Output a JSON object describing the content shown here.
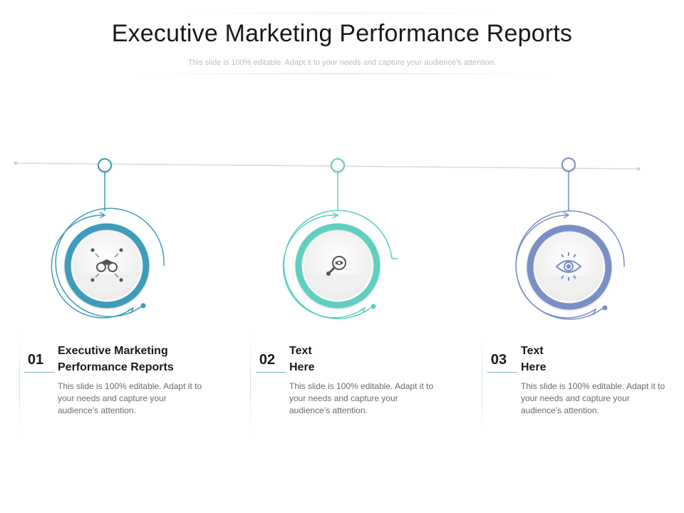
{
  "title": "Executive Marketing Performance Reports",
  "subtitle": "This slide is 100% editable. Adapt it to your needs and capture your audience’s attention.",
  "colors": {
    "blue": "#3d9cb9",
    "teal": "#5fcfc0",
    "purple": "#7b8fc4",
    "track": "#d9d9d9"
  },
  "items": [
    {
      "number": "01",
      "heading": "Executive Marketing\nPerformance Reports",
      "body": "This slide is 100% editable. Adapt it to your needs and capture your audience’s attention.",
      "icon": "binoculars-icon",
      "color": "#3d9cb9"
    },
    {
      "number": "02",
      "heading": "Text\nHere",
      "body": "This slide is 100% editable. Adapt it to your needs and capture your audience’s attention.",
      "icon": "eye-search-icon",
      "color": "#5fcfc0"
    },
    {
      "number": "03",
      "heading": "Text\nHere",
      "body": "This slide is 100% editable. Adapt it to your needs and capture your audience’s attention.",
      "icon": "eye-target-icon",
      "color": "#7b8fc4"
    }
  ]
}
